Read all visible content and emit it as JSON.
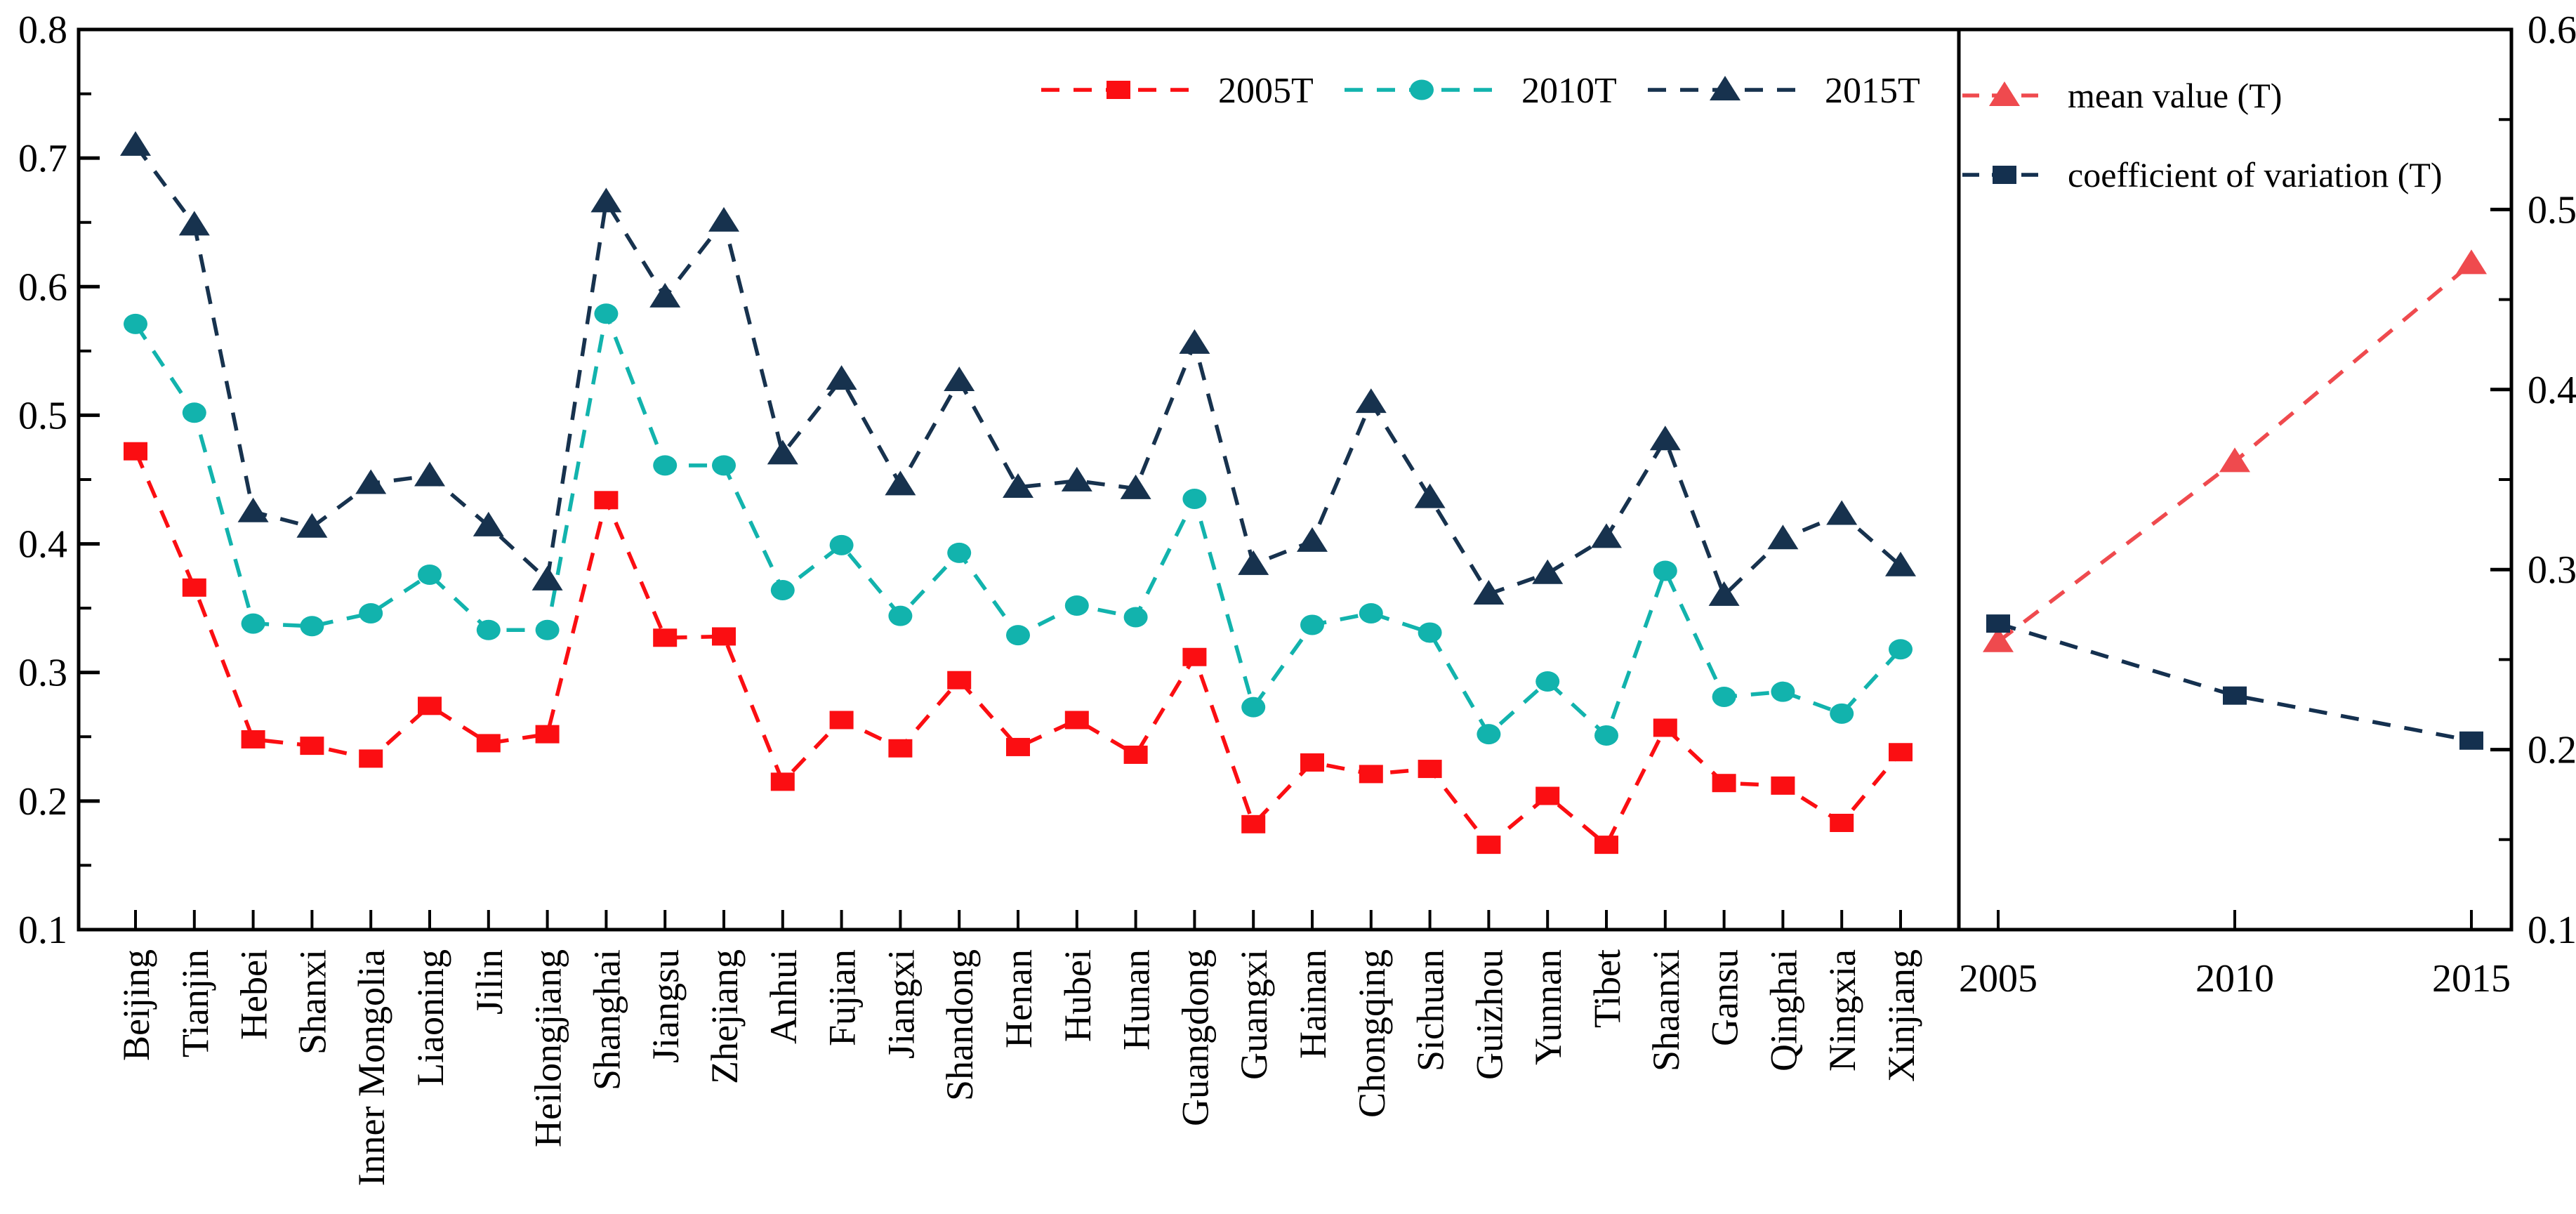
{
  "chart_data": {
    "type": "line",
    "title": "",
    "grid": false,
    "background_color": "#ffffff",
    "axis_color": "#000000",
    "left_panel": {
      "name": "provincial values by year",
      "categories": [
        "Beijing",
        "Tianjin",
        "Hebei",
        "Shanxi",
        "Inner Mongolia",
        "Liaoning",
        "Jilin",
        "Heilongjiang",
        "Shanghai",
        "Jiangsu",
        "Zhejiang",
        "Anhui",
        "Fujian",
        "Jiangxi",
        "Shandong",
        "Henan",
        "Hubei",
        "Hunan",
        "Guangdong",
        "Guangxi",
        "Hainan",
        "Chongqing",
        "Sichuan",
        "Guizhou",
        "Yunnan",
        "Tibet",
        "Shaanxi",
        "Gansu",
        "Qinghai",
        "Ningxia",
        "Xinjiang"
      ],
      "ylim": [
        0.1,
        0.8
      ],
      "y_tick_labels": [
        "0.1",
        "0.2",
        "0.3",
        "0.4",
        "0.5",
        "0.6",
        "0.7",
        "0.8"
      ],
      "y_minor_ticks": [
        0.15,
        0.25,
        0.35,
        0.45,
        0.55,
        0.65,
        0.75
      ],
      "line_style": "dashed",
      "series": [
        {
          "name": "2005T",
          "marker": "square",
          "color": "#fb0e12",
          "values": [
            0.472,
            0.366,
            0.248,
            0.243,
            0.233,
            0.274,
            0.245,
            0.252,
            0.434,
            0.327,
            0.328,
            0.215,
            0.263,
            0.241,
            0.294,
            0.242,
            0.263,
            0.236,
            0.312,
            0.182,
            0.23,
            0.221,
            0.225,
            0.166,
            0.204,
            0.166,
            0.257,
            0.214,
            0.212,
            0.183,
            0.238
          ]
        },
        {
          "name": "2010T",
          "marker": "circle",
          "color": "#12b3ad",
          "values": [
            0.571,
            0.502,
            0.338,
            0.336,
            0.346,
            0.376,
            0.333,
            0.333,
            0.579,
            0.461,
            0.461,
            0.364,
            0.399,
            0.344,
            0.393,
            0.329,
            0.352,
            0.343,
            0.435,
            0.273,
            0.337,
            0.346,
            0.331,
            0.252,
            0.293,
            0.251,
            0.379,
            0.281,
            0.285,
            0.268,
            0.318
          ]
        },
        {
          "name": "2015T",
          "marker": "triangle",
          "color": "#17324e",
          "values": [
            0.71,
            0.648,
            0.425,
            0.413,
            0.447,
            0.453,
            0.414,
            0.372,
            0.666,
            0.592,
            0.651,
            0.47,
            0.528,
            0.446,
            0.527,
            0.444,
            0.449,
            0.443,
            0.556,
            0.384,
            0.402,
            0.51,
            0.436,
            0.361,
            0.377,
            0.405,
            0.481,
            0.36,
            0.404,
            0.423,
            0.383
          ]
        }
      ]
    },
    "right_panel": {
      "name": "summary statistics by year",
      "x_labels": [
        "2005",
        "2010",
        "2015"
      ],
      "ylim": [
        0.1,
        0.6
      ],
      "y_tick_labels": [
        "0.1",
        "0.2",
        "0.3",
        "0.4",
        "0.5",
        "0.6"
      ],
      "y_minor_ticks": [
        0.15,
        0.25,
        0.35,
        0.45,
        0.55
      ],
      "line_style": "dashed",
      "series": [
        {
          "name": "mean value (T)",
          "marker": "triangle",
          "color": "#ef4a4e",
          "values": [
            0.26,
            0.36,
            0.47
          ]
        },
        {
          "name": "coefficient of variation (T)",
          "marker": "square",
          "color": "#14304f",
          "values": [
            0.27,
            0.23,
            0.205
          ]
        }
      ]
    },
    "legend_left": {
      "items": [
        "2005T",
        "2010T",
        "2015T"
      ],
      "position": "top center of left panel"
    },
    "legend_right": {
      "items": [
        "mean value (T)",
        "coefficient of variation (T)"
      ],
      "position": "top left of right panel"
    }
  }
}
